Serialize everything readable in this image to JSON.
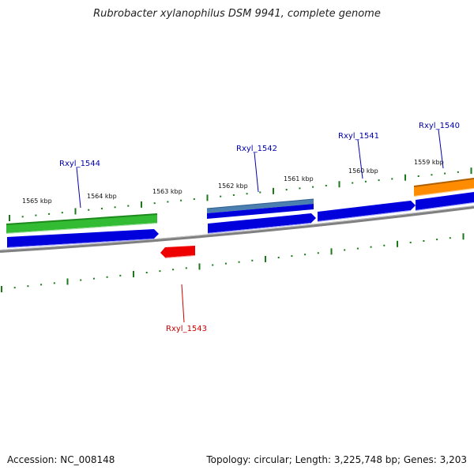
{
  "title": "Rubrobacter xylanophilus DSM 9941, complete genome",
  "footer": {
    "accession": "Accession: NC_008148",
    "summary": "Topology: circular; Length: 3,225,748 bp; Genes: 3,203"
  },
  "colors": {
    "backbone": "#808080",
    "tick": "#1a7a1a",
    "cds": "#0000dd",
    "gene_green": "#33bb33",
    "gene_steelblue": "#4a7fb0",
    "gene_orange": "#ff8c00",
    "gene_red": "#ee0000",
    "label_blue": "#0000aa",
    "label_red": "#cc0000"
  },
  "scale": {
    "labels": [
      "1565 kbp",
      "1564 kbp",
      "1563 kbp",
      "1562 kbp",
      "1561 kbp",
      "1560 kbp",
      "1559 kbp"
    ]
  },
  "genes": [
    {
      "id": "g1544",
      "label": "Rxyl_1544",
      "strand": "+",
      "track": "feature",
      "color": "green"
    },
    {
      "id": "g1542",
      "label": "Rxyl_1542",
      "strand": "+",
      "track": "feature",
      "color": "steelblue"
    },
    {
      "id": "g1541",
      "label": "Rxyl_1541",
      "strand": "+",
      "track": "cds",
      "color": "blue"
    },
    {
      "id": "g1540",
      "label": "Rxyl_1540",
      "strand": "+",
      "track": "feature",
      "color": "orange"
    },
    {
      "id": "g1543",
      "label": "Rxyl_1543",
      "strand": "-",
      "track": "feature",
      "color": "red"
    }
  ]
}
